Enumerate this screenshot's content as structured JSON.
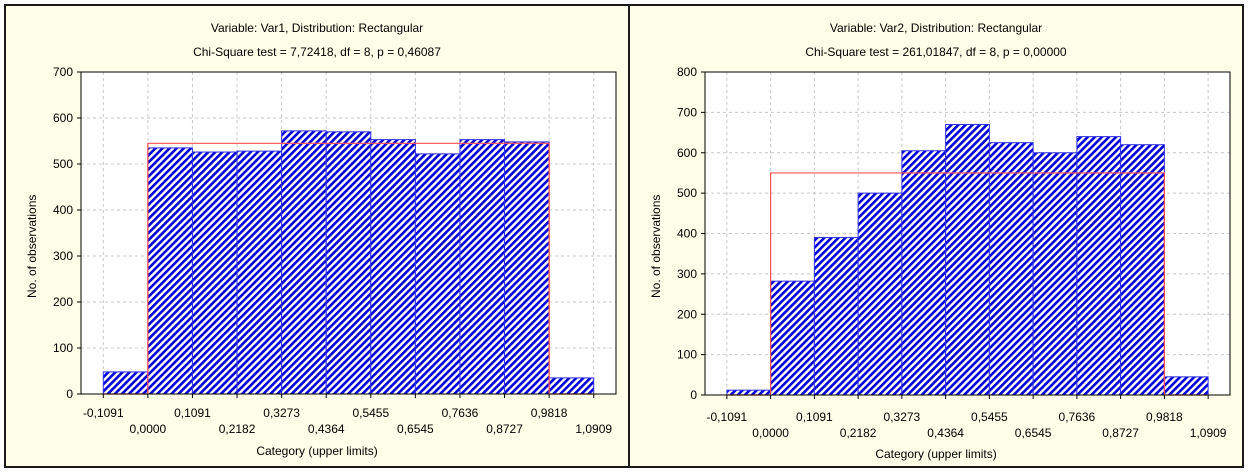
{
  "chart_data": [
    {
      "type": "bar",
      "title": "Variable: Var1, Distribution: Rectangular",
      "subtitle": "Chi-Square test = 7,72418, df = 8, p = 0,46087",
      "xlabel": "Category (upper limits)",
      "ylabel": "No. of observations",
      "ylim": [
        0,
        700
      ],
      "yticks": [
        "0",
        "100",
        "200",
        "300",
        "400",
        "500",
        "600",
        "700"
      ],
      "xticks": [
        "-0,1091",
        "0,0000",
        "0,1091",
        "0,2182",
        "0,3273",
        "0,4364",
        "0,5455",
        "0,6545",
        "0,7636",
        "0,8727",
        "0,9818",
        "1,0909"
      ],
      "values": [
        48,
        535,
        526,
        528,
        572,
        570,
        553,
        522,
        553,
        548,
        35
      ],
      "expected": 545,
      "grid": true,
      "colors": {
        "bar_fill": "#0000d8",
        "bar_edge": "#3030e8",
        "expected_line": "#ff5050",
        "background": "#fefee9"
      }
    },
    {
      "type": "bar",
      "title": "Variable: Var2, Distribution: Rectangular",
      "subtitle": "Chi-Square test = 261,01847, df = 8, p = 0,00000",
      "xlabel": "Category (upper limits)",
      "ylabel": "No. of observations",
      "ylim": [
        0,
        800
      ],
      "yticks": [
        "0",
        "100",
        "200",
        "300",
        "400",
        "500",
        "600",
        "700",
        "800"
      ],
      "xticks": [
        "-0,1091",
        "0,0000",
        "0,1091",
        "0,2182",
        "0,3273",
        "0,4364",
        "0,5455",
        "0,6545",
        "0,7636",
        "0,8727",
        "0,9818",
        "1,0909"
      ],
      "values": [
        12,
        282,
        390,
        500,
        605,
        670,
        625,
        600,
        640,
        620,
        45
      ],
      "expected": 550,
      "grid": true,
      "colors": {
        "bar_fill": "#0000d8",
        "bar_edge": "#3030e8",
        "expected_line": "#ff5050",
        "background": "#fefee9"
      }
    }
  ]
}
